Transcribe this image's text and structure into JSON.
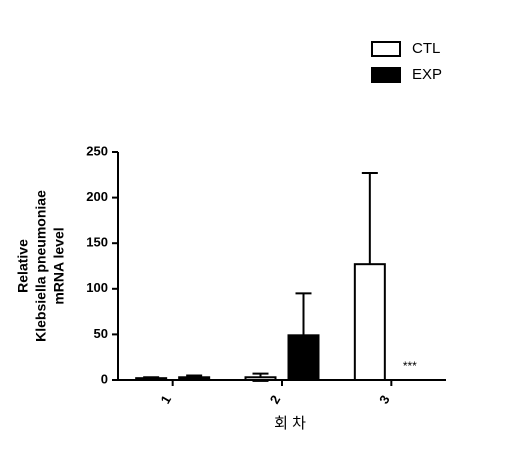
{
  "chart_data": {
    "type": "bar",
    "y_label": [
      "Relative",
      "Klebsiella pneumoniae",
      "mRNA level"
    ],
    "x_label": "회 차",
    "categories": [
      "1",
      "2",
      "3"
    ],
    "series": [
      {
        "name": "CTL",
        "color": "#ffffff",
        "values": [
          2,
          3,
          127
        ],
        "errors": [
          1,
          4,
          100
        ]
      },
      {
        "name": "EXP",
        "color": "#000000",
        "values": [
          3,
          49,
          0
        ],
        "errors": [
          2,
          46,
          0
        ]
      }
    ],
    "ylim": [
      0,
      250
    ],
    "yticks": [
      0,
      50,
      100,
      150,
      200,
      250
    ],
    "annotations": [
      {
        "text": "***",
        "category": 2,
        "series": 1
      }
    ],
    "legend": "top-right"
  }
}
